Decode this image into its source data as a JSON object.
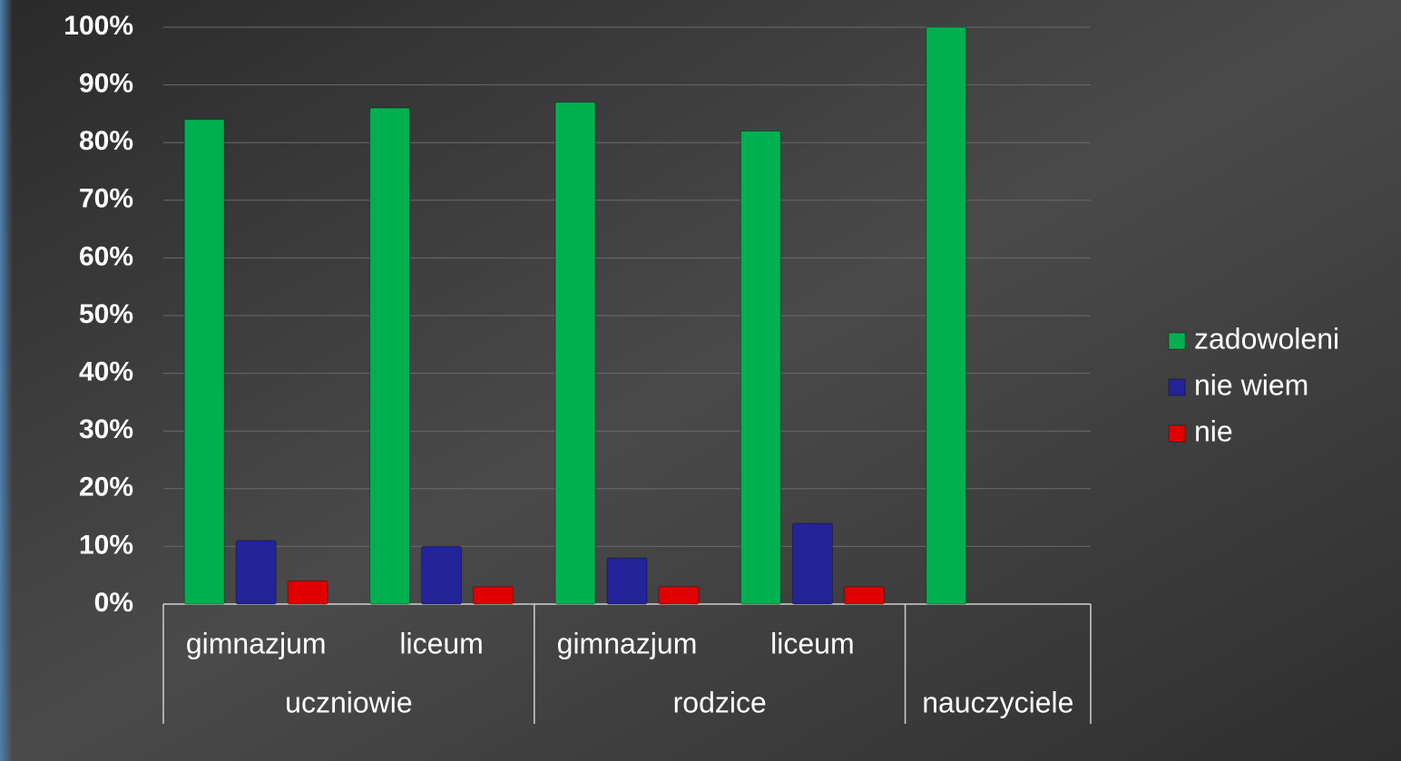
{
  "chart_data": {
    "type": "bar",
    "categories": [
      "gimnazjum",
      "liceum",
      "gimnazjum",
      "liceum",
      null
    ],
    "category_groups": [
      "uczniowie",
      "uczniowie",
      "rodzice",
      "rodzice",
      "nauczyciele"
    ],
    "series": [
      {
        "name": "zadowoleni",
        "color": "#00b050",
        "values": [
          84,
          86,
          87,
          82,
          100
        ]
      },
      {
        "name": "nie wiem",
        "color": "#23239a",
        "values": [
          11,
          10,
          8,
          14,
          null
        ]
      },
      {
        "name": "nie",
        "color": "#e00000",
        "values": [
          4,
          3,
          3,
          3,
          null
        ]
      }
    ],
    "ylim": [
      0,
      100
    ],
    "yticks": [
      {
        "value": 0,
        "label": "0%"
      },
      {
        "value": 10,
        "label": "10%"
      },
      {
        "value": 20,
        "label": "20%"
      },
      {
        "value": 30,
        "label": "30%"
      },
      {
        "value": 40,
        "label": "40%"
      },
      {
        "value": 50,
        "label": "50%"
      },
      {
        "value": 60,
        "label": "60%"
      },
      {
        "value": 70,
        "label": "70%"
      },
      {
        "value": 80,
        "label": "80%"
      },
      {
        "value": 90,
        "label": "90%"
      },
      {
        "value": 100,
        "label": "100%"
      }
    ],
    "grid": true,
    "legend": "right"
  }
}
